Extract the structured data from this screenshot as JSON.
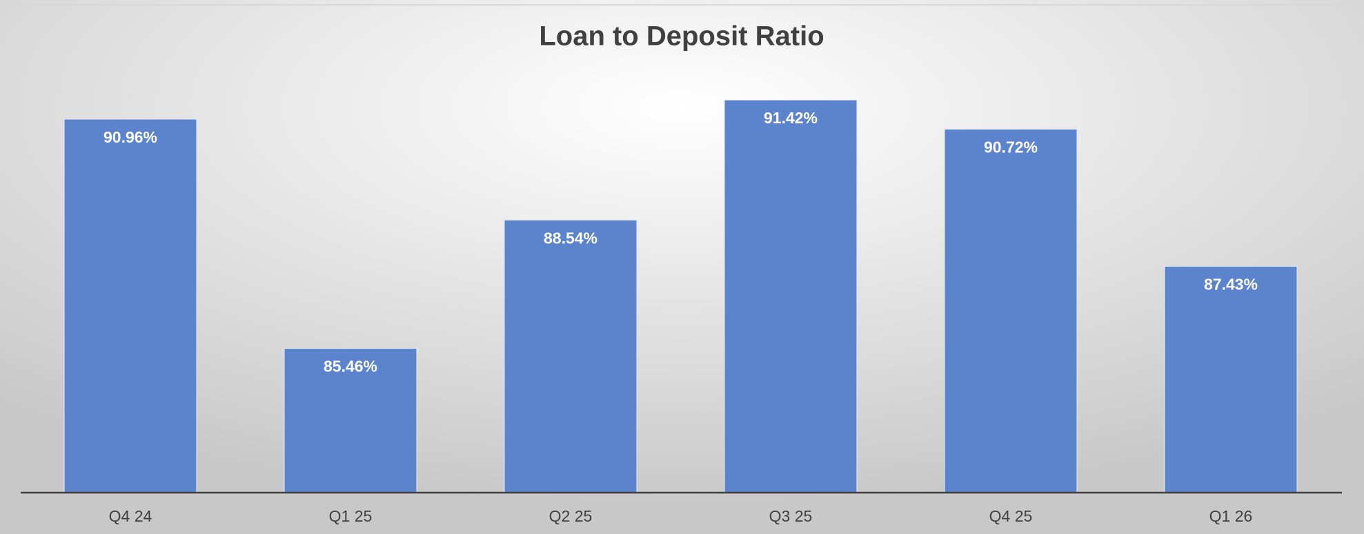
{
  "chart_data": {
    "type": "bar",
    "title": "Loan to Deposit Ratio",
    "categories": [
      "Q4 24",
      "Q1 25",
      "Q2 25",
      "Q3 25",
      "Q4 25",
      "Q1 26"
    ],
    "values": [
      90.96,
      85.46,
      88.54,
      91.42,
      90.72,
      87.43
    ],
    "value_labels": [
      "90.96%",
      "85.46%",
      "88.54%",
      "91.42%",
      "90.72%",
      "87.43%"
    ],
    "color": "#5b84cc",
    "ylim": [
      82,
      92
    ]
  }
}
